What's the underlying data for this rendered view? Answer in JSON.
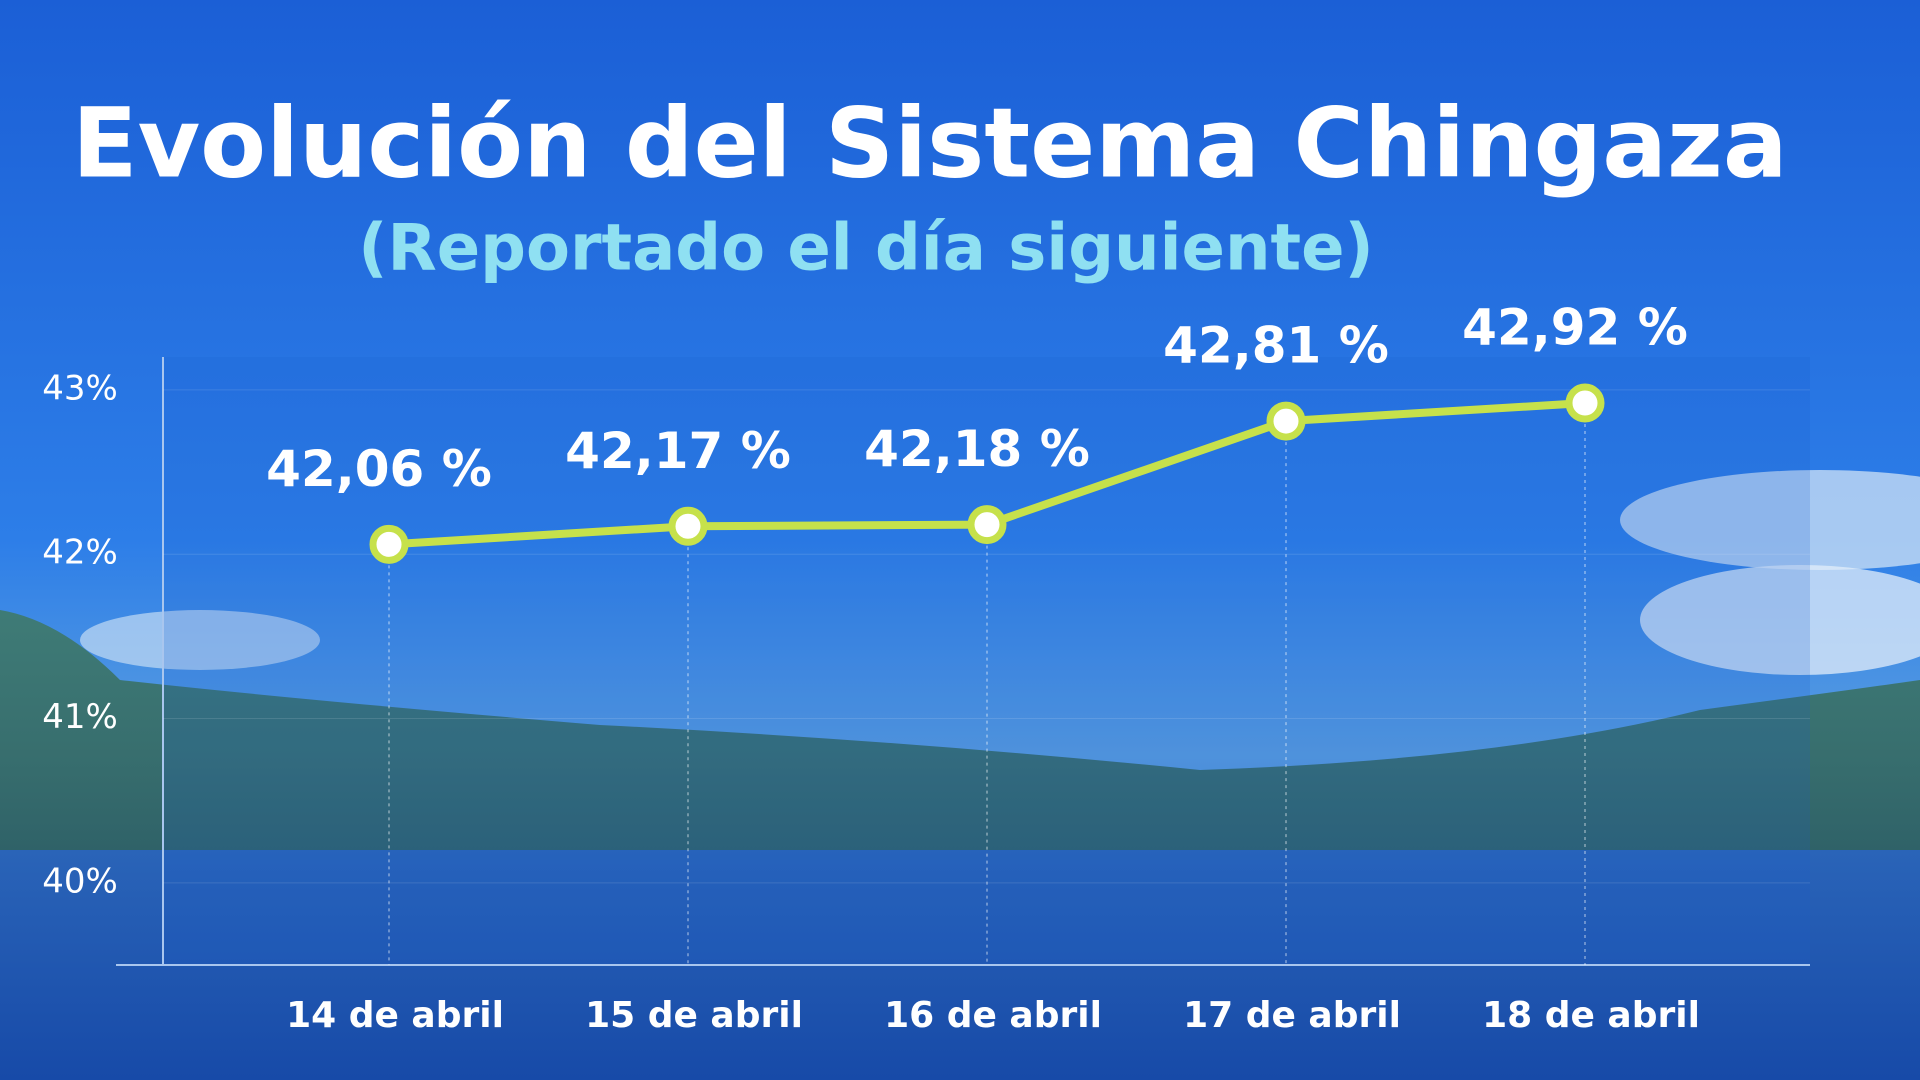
{
  "chart_data": {
    "type": "line",
    "title": "Evolución del Sistema Chingaza",
    "subtitle": "(Reportado el día siguiente)",
    "categories": [
      "14 de abril",
      "15 de abril",
      "16 de abril",
      "17 de abril",
      "18 de abril"
    ],
    "values": [
      42.06,
      42.17,
      42.18,
      42.81,
      42.92
    ],
    "value_labels": [
      "42,06 %",
      "42,17 %",
      "42,18 %",
      "42,81 %",
      "42,92 %"
    ],
    "color": "#c6e14b",
    "ylim": [
      39.5,
      43.2
    ],
    "yticks": [
      {
        "value": 40,
        "label": "40%"
      },
      {
        "value": 41,
        "label": "41%"
      },
      {
        "value": 42,
        "label": "42%"
      },
      {
        "value": 43,
        "label": "43%"
      }
    ],
    "grid": true
  }
}
